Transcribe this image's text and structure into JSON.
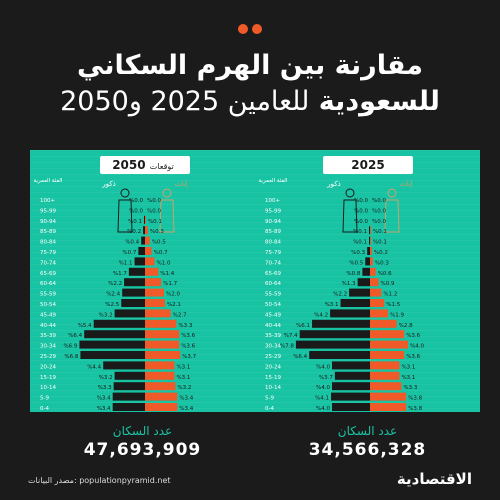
{
  "title": {
    "line1": "مقارنة بين الهرم السكاني",
    "line2_bold": "للسعودية",
    "line2_rest": "للعامين 2025 و2050"
  },
  "labels": {
    "age_header": "الفئة العمرية",
    "males": "ذكور",
    "females": "إناث",
    "population": "عدد السكان"
  },
  "source": "مصدر البيانات: populationpyramid.net",
  "brand": "الاقتصادية",
  "colors": {
    "background": "#1b1b1b",
    "panel": "#18c3a3",
    "male": "#1a1a1a",
    "female": "#ef5a28"
  },
  "chart_data": [
    {
      "type": "bar",
      "year_label": "2025",
      "population": "34,566,328",
      "categories": [
        "100+",
        "95-99",
        "90-94",
        "85-89",
        "80-84",
        "75-79",
        "70-74",
        "65-69",
        "60-64",
        "55-59",
        "50-54",
        "45-49",
        "40-44",
        "35-39",
        "30-34",
        "25-29",
        "20-24",
        "15-19",
        "10-14",
        "5-9",
        "0-4"
      ],
      "series": [
        {
          "name": "ذكور",
          "values": [
            0.0,
            0.0,
            0.0,
            0.1,
            0.1,
            0.3,
            0.5,
            0.8,
            1.3,
            2.2,
            3.1,
            4.2,
            6.1,
            7.4,
            7.8,
            6.4,
            4.0,
            3.7,
            4.0,
            4.1,
            4.0
          ]
        },
        {
          "name": "إناث",
          "values": [
            0.0,
            0.0,
            0.0,
            0.1,
            0.1,
            0.2,
            0.3,
            0.6,
            0.9,
            1.2,
            1.5,
            1.9,
            2.8,
            3.6,
            4.0,
            3.6,
            3.1,
            3.1,
            3.3,
            3.8,
            3.8
          ]
        }
      ]
    },
    {
      "type": "bar",
      "year_label": "2050",
      "subtitle": "توقعات",
      "population": "47,693,909",
      "categories": [
        "100+",
        "95-99",
        "90-94",
        "85-89",
        "80-84",
        "75-79",
        "70-74",
        "65-69",
        "60-64",
        "55-59",
        "50-54",
        "45-49",
        "40-44",
        "35-39",
        "30-34",
        "25-29",
        "20-24",
        "15-19",
        "10-14",
        "5-9",
        "0-4"
      ],
      "series": [
        {
          "name": "ذكور",
          "values": [
            0.0,
            0.0,
            0.1,
            0.2,
            0.4,
            0.7,
            1.1,
            1.7,
            2.2,
            2.4,
            2.5,
            3.2,
            5.4,
            6.4,
            6.9,
            6.8,
            4.4,
            3.2,
            3.3,
            3.4,
            3.4
          ]
        },
        {
          "name": "إناث",
          "values": [
            0.0,
            0.0,
            0.1,
            0.3,
            0.5,
            0.7,
            1.0,
            1.4,
            1.7,
            2.0,
            2.1,
            2.7,
            3.3,
            3.6,
            3.6,
            3.7,
            3.1,
            3.1,
            3.2,
            3.4,
            3.4
          ]
        }
      ]
    }
  ]
}
